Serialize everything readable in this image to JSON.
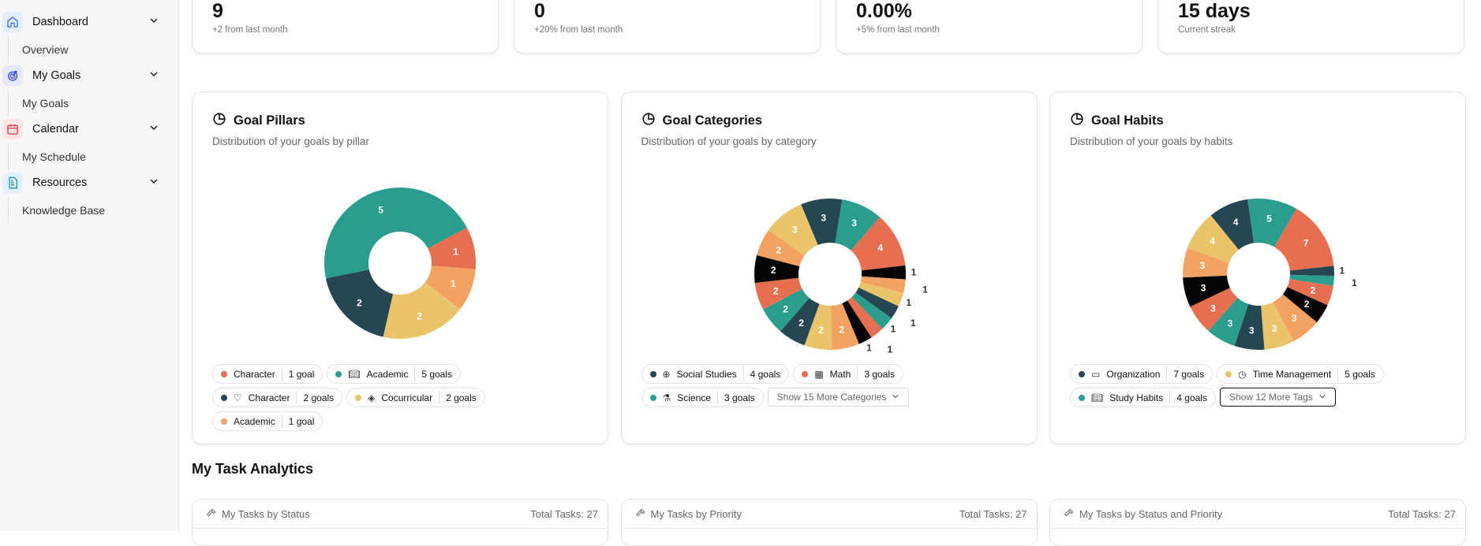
{
  "sidebar": {
    "groups": [
      {
        "label": "Dashboard",
        "sub": "Overview",
        "icon": "home-icon",
        "bg": "#e3eefc",
        "fg": "#3b6fe0"
      },
      {
        "label": "My Goals",
        "sub": "My Goals",
        "icon": "target-icon",
        "bg": "#e5e9fb",
        "fg": "#4057e8"
      },
      {
        "label": "Calendar",
        "sub": "My Schedule",
        "icon": "calendar-icon",
        "bg": "#fde6e6",
        "fg": "#e5384a"
      },
      {
        "label": "Resources",
        "sub": "Knowledge Base",
        "icon": "document-icon",
        "bg": "#e1f1f8",
        "fg": "#1f8fbf"
      }
    ]
  },
  "stats": [
    {
      "value": "9",
      "sub": "+2 from last month"
    },
    {
      "value": "0",
      "sub": "+20% from last month"
    },
    {
      "value": "0.00%",
      "sub": "+5% from last month"
    },
    {
      "value": "15 days",
      "sub": "Current streak"
    }
  ],
  "palette": {
    "teal": "#2a9d8f",
    "red": "#e76f51",
    "black": "#050505",
    "orange": "#f4a261",
    "yellow": "#e9c46a",
    "dark": "#264653"
  },
  "chart_data": [
    {
      "type": "pie",
      "title": "Goal Pillars",
      "subtitle": "Distribution of your goals by pillar",
      "values": [
        1,
        1,
        2,
        2,
        5
      ],
      "colors": [
        "red",
        "orange",
        "yellow",
        "dark",
        "teal"
      ],
      "legend": [
        {
          "dot": "red",
          "icon": "",
          "label": "Character",
          "count": "1 goal"
        },
        {
          "dot": "teal",
          "icon": "book-icon",
          "label": "Academic",
          "count": "5 goals"
        },
        {
          "dot": "dark",
          "icon": "heart-icon",
          "label": "Character",
          "count": "2 goals"
        },
        {
          "dot": "yellow",
          "icon": "shapes-icon",
          "label": "Cocurricular",
          "count": "2 goals"
        },
        {
          "dot": "orange",
          "icon": "",
          "label": "Academic",
          "count": "1 goal"
        }
      ]
    },
    {
      "type": "pie",
      "title": "Goal Categories",
      "subtitle": "Distribution of your goals by category",
      "values": [
        4,
        1,
        1,
        1,
        1,
        1,
        1,
        1,
        2,
        2,
        2,
        2,
        2,
        2,
        2,
        3,
        3,
        3
      ],
      "colors": [
        "red",
        "black",
        "orange",
        "yellow",
        "dark",
        "teal",
        "red",
        "black",
        "orange",
        "yellow",
        "dark",
        "teal",
        "red",
        "black",
        "orange",
        "yellow",
        "dark",
        "teal"
      ],
      "legend": [
        {
          "dot": "dark",
          "icon": "globe-icon",
          "label": "Social Studies",
          "count": "4 goals"
        },
        {
          "dot": "red",
          "icon": "calculator-icon",
          "label": "Math",
          "count": "3 goals"
        },
        {
          "dot": "teal",
          "icon": "flask-icon",
          "label": "Science",
          "count": "3 goals"
        }
      ],
      "more": "Show 15 More Categories"
    },
    {
      "type": "pie",
      "title": "Goal Habits",
      "subtitle": "Distribution of your goals by habits",
      "values": [
        7,
        1,
        1,
        2,
        2,
        3,
        3,
        3,
        3,
        3,
        3,
        3,
        4,
        4,
        5
      ],
      "colors": [
        "red",
        "dark",
        "teal",
        "red",
        "black",
        "orange",
        "yellow",
        "dark",
        "teal",
        "red",
        "black",
        "orange",
        "yellow",
        "dark",
        "teal"
      ],
      "legend": [
        {
          "dot": "dark",
          "icon": "folder-icon",
          "label": "Organization",
          "count": "7 goals"
        },
        {
          "dot": "yellow",
          "icon": "clock-icon",
          "label": "Time Management",
          "count": "5 goals"
        },
        {
          "dot": "teal",
          "icon": "book-icon",
          "label": "Study Habits",
          "count": "4 goals"
        }
      ],
      "more": "Show 12 More Tags"
    }
  ],
  "task_analytics": {
    "title": "My Task Analytics",
    "cards": [
      {
        "title": "My Tasks by Status",
        "total": "Total Tasks: 27"
      },
      {
        "title": "My Tasks by Priority",
        "total": "Total Tasks: 27"
      },
      {
        "title": "My Tasks by Status and Priority",
        "total": "Total Tasks: 27"
      }
    ]
  }
}
